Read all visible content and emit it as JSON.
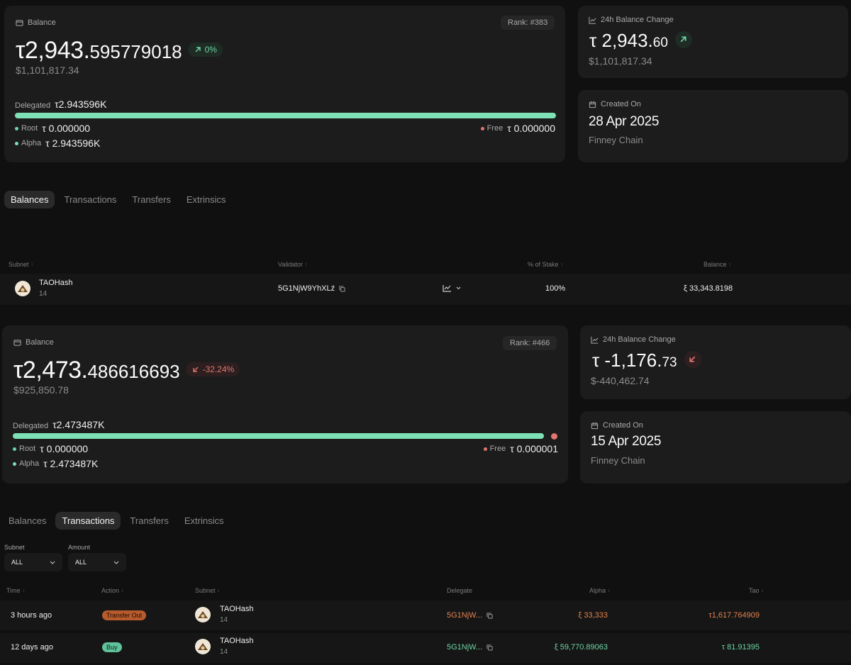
{
  "account1": {
    "balance_label": "Balance",
    "rank": "Rank: #383",
    "balance_int": "τ2,943.",
    "balance_frac": "595779018",
    "change_pct": "0%",
    "usd": "$1,101,817.34",
    "delegated_label": "Delegated",
    "delegated_value": "τ2.943596K",
    "delegated_fraction": 1.0,
    "root_label": "Root",
    "root_value": "τ 0.000000",
    "free_label": "Free",
    "free_value": "τ 0.000000",
    "alpha_label": "Alpha",
    "alpha_value": "τ 2.943596K",
    "change24_label": "24h Balance Change",
    "change24_int": "τ 2,943.",
    "change24_frac": "60",
    "change24_usd": "$1,101,817.34",
    "created_label": "Created On",
    "created_date": "28 Apr 2025",
    "chain": "Finney Chain"
  },
  "tabs1": [
    "Balances",
    "Transactions",
    "Transfers",
    "Extrinsics"
  ],
  "balances_table": {
    "headers": [
      "Subnet",
      "Validator",
      "% of Stake",
      "Balance"
    ],
    "rows": [
      {
        "subnet": "TAOHash",
        "netuid": "14",
        "validator": "5G1NjW9YhXLź",
        "stake_pct": "100%",
        "balance": "ξ 33,343.8198"
      }
    ]
  },
  "account2": {
    "balance_label": "Balance",
    "rank": "Rank: #466",
    "balance_int": "τ2,473.",
    "balance_frac": "486616693",
    "change_pct": "-32.24%",
    "usd": "$925,850.78",
    "delegated_label": "Delegated",
    "delegated_value": "τ2.473487K",
    "delegated_fraction": 0.99,
    "root_label": "Root",
    "root_value": "τ 0.000000",
    "free_label": "Free",
    "free_value": "τ 0.000001",
    "alpha_label": "Alpha",
    "alpha_value": "τ 2.473487K",
    "change24_label": "24h Balance Change",
    "change24_int": "τ -1,176.",
    "change24_frac": "73",
    "change24_usd": "$-440,462.74",
    "created_label": "Created On",
    "created_date": "15 Apr 2025",
    "chain": "Finney Chain"
  },
  "tabs2": [
    "Balances",
    "Transactions",
    "Transfers",
    "Extrinsics"
  ],
  "filters": {
    "subnet_label": "Subnet",
    "subnet_value": "ALL",
    "amount_label": "Amount",
    "amount_value": "ALL"
  },
  "tx_table": {
    "headers": [
      "Time",
      "Action",
      "Subnet",
      "Delegate",
      "Alpha",
      "Tao"
    ],
    "rows": [
      {
        "time": "3 hours ago",
        "action": "Transfer Out",
        "subnet": "TAOHash",
        "netuid": "14",
        "delegate": "5G1NjW...",
        "alpha": "ξ 33,333",
        "tao": "τ1,617.764909"
      },
      {
        "time": "12 days ago",
        "action": "Buy",
        "subnet": "TAOHash",
        "netuid": "14",
        "delegate": "5G1NjW...",
        "alpha": "ξ 59,770.89063",
        "tao": "τ 81.91395"
      }
    ]
  },
  "colors": {
    "accent_green": "#7ee0b5",
    "negative_red": "#e0766f",
    "orange": "#e3824f"
  }
}
